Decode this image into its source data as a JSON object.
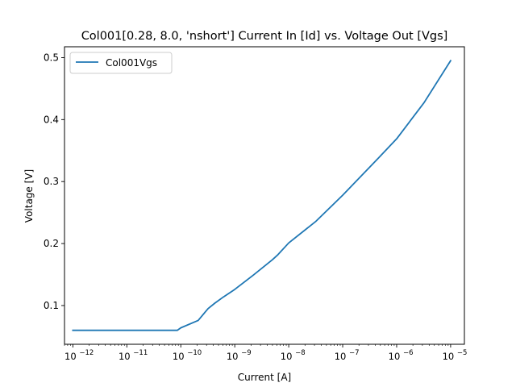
{
  "chart_data": {
    "type": "line",
    "title": "Col001[0.28, 8.0, 'nshort'] Current In [Id] vs. Voltage Out [Vgs]",
    "xlabel": "Current [A]",
    "ylabel": "Voltage [V]",
    "xscale": "log",
    "xlim": [
      7e-13,
      1.8e-05
    ],
    "ylim": [
      0.0375,
      0.5175
    ],
    "xticks": [
      1e-12,
      1e-11,
      1e-10,
      1e-09,
      1e-08,
      1e-07,
      1e-06,
      1e-05
    ],
    "xtick_labels": [
      "10",
      "10",
      "10",
      "10",
      "10",
      "10",
      "10",
      "10"
    ],
    "xtick_exponents": [
      "−12",
      "−11",
      "−10",
      "−9",
      "−8",
      "−7",
      "−6",
      "−5"
    ],
    "yticks": [
      0.1,
      0.2,
      0.3,
      0.4,
      0.5
    ],
    "ytick_labels": [
      "0.1",
      "0.2",
      "0.3",
      "0.4",
      "0.5"
    ],
    "grid": false,
    "legend": {
      "placement": "top-left",
      "entries": [
        "Col001Vgs"
      ]
    },
    "series": [
      {
        "name": "Col001Vgs",
        "color": "#1f77b4",
        "x": [
          1e-12,
          1e-11,
          5e-11,
          8.6e-11,
          1e-10,
          2.1e-10,
          3.2e-10,
          4.3e-10,
          6.2e-10,
          1e-09,
          2.2e-09,
          5e-09,
          6.3e-09,
          1e-08,
          3.2e-08,
          1e-07,
          4.6e-07,
          1e-06,
          3.2e-06,
          1e-05
        ],
        "y": [
          0.06,
          0.06,
          0.06,
          0.06,
          0.064,
          0.076,
          0.095,
          0.104,
          0.114,
          0.126,
          0.149,
          0.174,
          0.182,
          0.201,
          0.236,
          0.278,
          0.338,
          0.369,
          0.427,
          0.495
        ]
      }
    ]
  }
}
